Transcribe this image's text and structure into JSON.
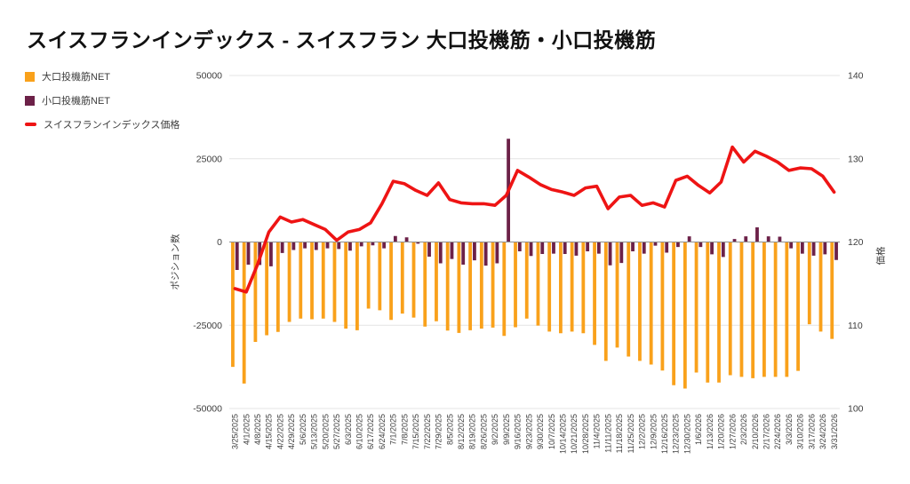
{
  "title": "スイスフランインデックス - スイスフラン 大口投機筋・小口投機筋",
  "legend": {
    "items": [
      {
        "label": "大口投機筋NET",
        "marker": "square",
        "color": "#F9A11B"
      },
      {
        "label": "小口投機筋NET",
        "marker": "square",
        "color": "#6C2148"
      },
      {
        "label": "スイスフランインデックス価格",
        "marker": "dash",
        "color": "#EE1414"
      }
    ]
  },
  "axes": {
    "left": {
      "title": "ポジション数",
      "ticks": [
        50000,
        25000,
        0,
        -25000,
        -50000
      ],
      "range": [
        -50000,
        50000
      ]
    },
    "right": {
      "title": "価格",
      "ticks": [
        140,
        130,
        120,
        110,
        100
      ],
      "range": [
        100,
        140
      ]
    }
  },
  "colors": {
    "large_spec": "#F9A11B",
    "small_spec": "#6C2148",
    "price_line": "#EE1414",
    "grid": "#E4E4E4",
    "zero_line": "#8F8F8F",
    "tick_text": "#3D3D3D",
    "title_text": "#111111",
    "background": "#FFFFFF"
  },
  "chart_data": {
    "type": "combo",
    "grid": true,
    "legend_position": "top-left",
    "categories": [
      "3/25/2025",
      "4/1/2025",
      "4/8/2025",
      "4/15/2025",
      "4/22/2025",
      "4/29/2025",
      "5/6/2025",
      "5/13/2025",
      "5/20/2025",
      "5/27/2025",
      "6/3/2025",
      "6/10/2025",
      "6/17/2025",
      "6/24/2025",
      "7/1/2025",
      "7/8/2025",
      "7/15/2025",
      "7/22/2025",
      "7/29/2025",
      "8/5/2025",
      "8/12/2025",
      "8/19/2025",
      "8/26/2025",
      "9/2/2025",
      "9/9/2025",
      "9/16/2025",
      "9/23/2025",
      "9/30/2025",
      "10/7/2025",
      "10/14/2025",
      "10/21/2025",
      "10/28/2025",
      "11/4/2025",
      "11/11/2025",
      "11/18/2025",
      "11/25/2025",
      "12/2/2025",
      "12/9/2025",
      "12/16/2025",
      "12/23/2025",
      "12/30/2025",
      "1/6/2026",
      "1/13/2026",
      "1/20/2026",
      "1/27/2026",
      "2/3/2026",
      "2/10/2026",
      "2/17/2026",
      "2/24/2026",
      "3/3/2026",
      "3/10/2026",
      "3/17/2026",
      "3/24/2026",
      "3/31/2026"
    ],
    "series": [
      {
        "name": "大口投機筋NET",
        "type": "bar",
        "axis": "left",
        "values": [
          -37500,
          -42500,
          -30000,
          -28000,
          -27000,
          -24000,
          -23000,
          -23200,
          -23000,
          -24000,
          -26000,
          -26500,
          -20000,
          -20500,
          -23400,
          -21500,
          -22700,
          -25400,
          -23800,
          -26600,
          -27300,
          -26500,
          -26000,
          -25700,
          -28200,
          -25600,
          -23000,
          -25100,
          -26900,
          -27400,
          -26900,
          -27400,
          -30900,
          -35700,
          -31700,
          -34400,
          -35700,
          -36800,
          -38600,
          -43000,
          -44000,
          -39200,
          -42200,
          -42200,
          -40000,
          -40500,
          -40900,
          -40500,
          -40500,
          -40500,
          -38700,
          -24700,
          -26900,
          -29100
        ]
      },
      {
        "name": "小口投機筋NET",
        "type": "bar",
        "axis": "left",
        "values": [
          -8400,
          -6800,
          -6900,
          -7300,
          -3300,
          -2400,
          -1900,
          -2400,
          -1900,
          -2100,
          -2600,
          -1300,
          -1000,
          -1900,
          1800,
          1400,
          -500,
          -4400,
          -6400,
          -5100,
          -6800,
          -5500,
          -7100,
          -6400,
          31000,
          -2800,
          -4200,
          -3600,
          -3500,
          -3600,
          -4100,
          -2800,
          -3500,
          -7000,
          -6300,
          -2800,
          -3500,
          -1100,
          -3200,
          -1500,
          1700,
          -1500,
          -3700,
          -4500,
          900,
          1700,
          4400,
          1700,
          1600,
          -1900,
          -3500,
          -4100,
          -3700,
          -5400
        ]
      },
      {
        "name": "スイスフランインデックス価格",
        "type": "line",
        "axis": "right",
        "values": [
          114.4,
          114.0,
          117.3,
          121.2,
          123.0,
          122.4,
          122.7,
          122.1,
          121.5,
          120.2,
          121.2,
          121.5,
          122.3,
          124.6,
          127.3,
          127.0,
          126.2,
          125.6,
          127.1,
          125.1,
          124.7,
          124.6,
          124.6,
          124.4,
          125.6,
          128.6,
          127.8,
          126.9,
          126.3,
          126.0,
          125.6,
          126.5,
          126.7,
          124.0,
          125.4,
          125.6,
          124.4,
          124.7,
          124.2,
          127.4,
          127.9,
          126.8,
          125.9,
          127.2,
          131.4,
          129.6,
          130.9,
          130.3,
          129.6,
          128.6,
          128.9,
          128.8,
          127.9,
          126.0
        ]
      }
    ],
    "xlabel": "",
    "ylabel_left": "ポジション数",
    "ylabel_right": "価格",
    "ylim_left": [
      -50000,
      50000
    ],
    "ylim_right": [
      100,
      140
    ]
  }
}
